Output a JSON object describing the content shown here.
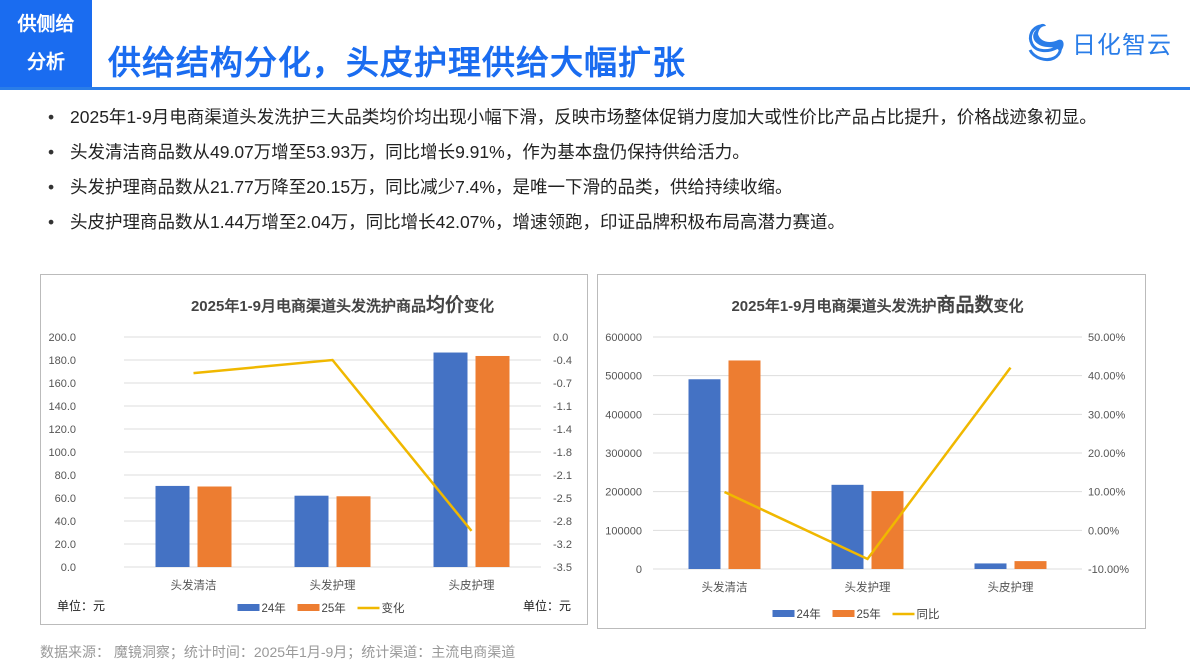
{
  "header": {
    "section_tag_line1": "供侧给",
    "section_tag_line2": "分析",
    "title": "供给结构分化，头皮护理供给大幅扩张",
    "logo_text": "日化智云",
    "accent_color": "#1a6cf0"
  },
  "bullets": [
    "2025年1-9月电商渠道头发洗护三大品类均价均出现小幅下滑，反映市场整体促销力度加大或性价比产品占比提升，价格战迹象初显。",
    "头发清洁商品数从49.07万增至53.93万，同比增长9.91%，作为基本盘仍保持供给活力。",
    "头发护理商品数从21.77万降至20.15万，同比减少7.4%，是唯一下滑的品类，供给持续收缩。",
    "头皮护理商品数从1.44万增至2.04万，同比增长42.07%，增速领跑，印证品牌积极布局高潜力赛道。"
  ],
  "footer": "数据来源： 魔镜洞察；统计时间：2025年1月-9月；统计渠道：主流电商渠道",
  "chart_data": [
    {
      "type": "bar",
      "title_parts": [
        "2025年1-9月电商渠道头发洗护商品",
        "均价",
        "变化"
      ],
      "categories": [
        "头发清洁",
        "头发护理",
        "头皮护理"
      ],
      "series": [
        {
          "name": "24年",
          "type": "bar",
          "axis": "left",
          "color": "#4472c4",
          "values": [
            70.5,
            62.0,
            186.5
          ]
        },
        {
          "name": "25年",
          "type": "bar",
          "axis": "left",
          "color": "#ed7d31",
          "values": [
            70.0,
            61.5,
            183.5
          ]
        },
        {
          "name": "变化",
          "type": "line",
          "axis": "right",
          "color": "#f0b800",
          "values": [
            -0.55,
            -0.35,
            -2.95
          ]
        }
      ],
      "left_axis": {
        "ticks": [
          "200.0",
          "180.0",
          "160.0",
          "140.0",
          "120.0",
          "100.0",
          "80.0",
          "60.0",
          "40.0",
          "20.0",
          "0.0"
        ],
        "min": 0,
        "max": 200
      },
      "right_axis": {
        "ticks": [
          "0.0",
          "-0.4",
          "-0.7",
          "-1.1",
          "-1.4",
          "-1.8",
          "-2.1",
          "-2.5",
          "-2.8",
          "-3.2",
          "-3.5"
        ],
        "min": -3.5,
        "max": 0
      },
      "unit_left": "单位：元",
      "unit_right": "单位：元",
      "legend": [
        "24年",
        "25年",
        "变化"
      ],
      "grid": true,
      "legend_position": "bottom"
    },
    {
      "type": "bar",
      "title_parts": [
        "2025年1-9月电商渠道头发洗护",
        "商品数",
        "变化"
      ],
      "categories": [
        "头发清洁",
        "头发护理",
        "头皮护理"
      ],
      "series": [
        {
          "name": "24年",
          "type": "bar",
          "axis": "left",
          "color": "#4472c4",
          "values": [
            490700,
            217700,
            14400
          ]
        },
        {
          "name": "25年",
          "type": "bar",
          "axis": "left",
          "color": "#ed7d31",
          "values": [
            539300,
            201500,
            20400
          ]
        },
        {
          "name": "同比",
          "type": "line",
          "axis": "right",
          "color": "#f0b800",
          "values": [
            9.91,
            -7.4,
            42.07
          ]
        }
      ],
      "left_axis": {
        "ticks": [
          "600000",
          "500000",
          "400000",
          "300000",
          "200000",
          "100000",
          "0"
        ],
        "min": 0,
        "max": 600000
      },
      "right_axis": {
        "ticks": [
          "50.00%",
          "40.00%",
          "30.00%",
          "20.00%",
          "10.00%",
          "0.00%",
          "-10.00%"
        ],
        "min": -10,
        "max": 50
      },
      "legend": [
        "24年",
        "25年",
        "同比"
      ],
      "grid": true,
      "legend_position": "bottom"
    }
  ]
}
